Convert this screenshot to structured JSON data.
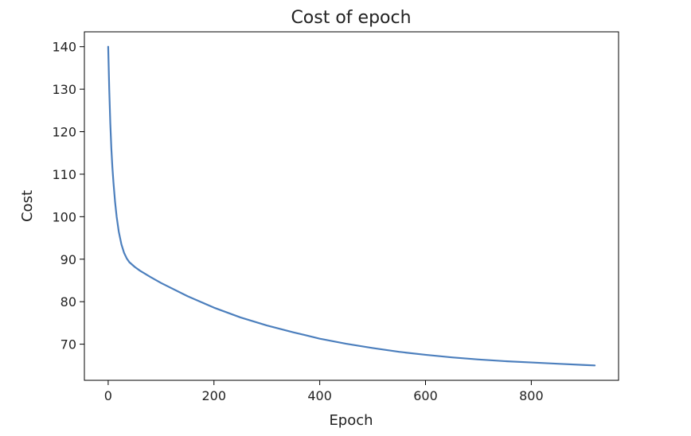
{
  "chart_data": {
    "type": "line",
    "title": "Cost of epoch",
    "xlabel": "Epoch",
    "ylabel": "Cost",
    "xlim": [
      -45,
      965
    ],
    "ylim": [
      61.5,
      143.5
    ],
    "xticks": [
      0,
      200,
      400,
      600,
      800
    ],
    "yticks": [
      70,
      80,
      90,
      100,
      110,
      120,
      130,
      140
    ],
    "grid": false,
    "series": [
      {
        "color": "#4c7fbd",
        "x": [
          0,
          2,
          4,
          6,
          8,
          10,
          13,
          16,
          20,
          25,
          30,
          35,
          40,
          50,
          60,
          80,
          100,
          150,
          200,
          250,
          300,
          350,
          400,
          450,
          500,
          550,
          600,
          650,
          700,
          750,
          800,
          850,
          900,
          920
        ],
        "y": [
          140.0,
          130.0,
          122.0,
          116.0,
          111.5,
          108.0,
          103.5,
          100.0,
          96.5,
          93.5,
          91.5,
          90.2,
          89.3,
          88.2,
          87.3,
          85.8,
          84.4,
          81.3,
          78.6,
          76.3,
          74.4,
          72.8,
          71.3,
          70.1,
          69.1,
          68.2,
          67.5,
          66.9,
          66.4,
          66.0,
          65.7,
          65.4,
          65.1,
          65.0
        ]
      }
    ]
  }
}
